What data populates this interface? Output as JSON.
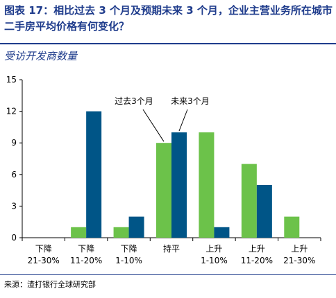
{
  "header": {
    "title": "图表 17：相比过去 3 个月及预期未来 3 个月，企业主营业务所在城市二手房平均价格有何变化？",
    "subtitle": "受访开发商数量"
  },
  "footer": {
    "source": "来源：渣打银行全球研究部"
  },
  "colors": {
    "past": "#6CC24A",
    "future": "#005587",
    "title": "#1F3C8C"
  },
  "chart_data": {
    "type": "bar",
    "title": "",
    "xlabel": "",
    "ylabel": "",
    "ylim": [
      0,
      15
    ],
    "yticks": [
      "0",
      "3",
      "6",
      "9",
      "12",
      "15"
    ],
    "grid": false,
    "legend": "callout labels above the 持平 bars",
    "categories": [
      [
        "下降",
        "21-30%"
      ],
      [
        "下降",
        "11-20%"
      ],
      [
        "下降",
        "1-10%"
      ],
      [
        "持平"
      ],
      [
        "上升",
        "1-10%"
      ],
      [
        "上升",
        "11-20%"
      ],
      [
        "上升",
        "21-30%"
      ]
    ],
    "series": [
      {
        "name": "过去3个月",
        "color": "#6CC24A",
        "values": [
          0,
          1,
          1,
          9,
          10,
          7,
          2
        ]
      },
      {
        "name": "未来3个月",
        "color": "#005587",
        "values": [
          0,
          12,
          2,
          10,
          1,
          5,
          0
        ]
      }
    ]
  }
}
